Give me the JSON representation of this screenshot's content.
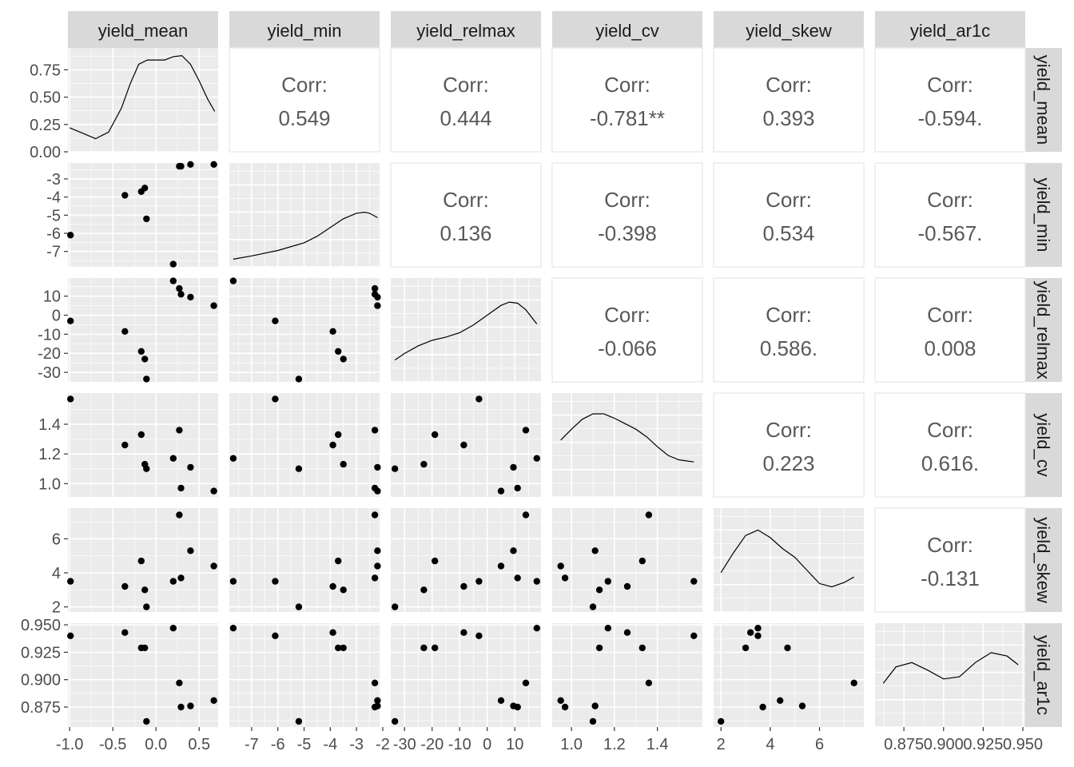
{
  "chart_data": {
    "type": "scatter-matrix",
    "title": "",
    "variables": [
      "yield_mean",
      "yield_min",
      "yield_relmax",
      "yield_cv",
      "yield_skew",
      "yield_ar1c"
    ],
    "axes": {
      "yield_mean": {
        "lim": [
          -1.02,
          0.72
        ],
        "ticks": [
          -1.0,
          -0.5,
          0.0,
          0.5
        ],
        "tick_labels": [
          "-1.0",
          "-0.5",
          "0.0",
          "0.5"
        ]
      },
      "yield_min": {
        "lim": [
          -7.85,
          -2.12
        ],
        "ticks": [
          -7,
          -6,
          -5,
          -4,
          -3,
          -2
        ],
        "tick_labels": [
          "-7",
          "-6",
          "-5",
          "-4",
          "-3",
          "-2"
        ]
      },
      "yield_relmax": {
        "lim": [
          -35.0,
          19.5
        ],
        "ticks": [
          -30,
          -20,
          -10,
          0,
          10
        ],
        "tick_labels": [
          "-30",
          "-20",
          "-10",
          "0",
          "10"
        ]
      },
      "yield_cv": {
        "lim": [
          0.91,
          1.61
        ],
        "ticks": [
          1.0,
          1.2,
          1.4
        ],
        "tick_labels": [
          "1.0",
          "1.2",
          "1.4"
        ]
      },
      "yield_skew": {
        "lim": [
          1.7,
          7.8
        ],
        "ticks": [
          2,
          4,
          6
        ],
        "tick_labels": [
          "2",
          "4",
          "6"
        ]
      },
      "yield_ar1c": {
        "lim": [
          0.8568,
          0.9515
        ],
        "ticks": [
          0.875,
          0.9,
          0.925,
          0.95
        ],
        "tick_labels": [
          "0.875",
          "0.900",
          "0.925",
          "0.950"
        ],
        "y_tick_labels": [
          "0.875",
          "0.900",
          "0.925",
          "0.950"
        ]
      }
    },
    "density_ylim": [
      0,
      0.95
    ],
    "density_yticks": [
      0,
      0.25,
      0.5,
      0.75
    ],
    "density_ytick_labels": [
      "0.00",
      "0.25",
      "0.50",
      "0.75"
    ],
    "points": {
      "yield_mean": [
        -0.99,
        -0.36,
        -0.17,
        -0.13,
        -0.11,
        0.2,
        0.27,
        0.29,
        0.4,
        0.67
      ],
      "yield_min": [
        -6.1,
        -3.9,
        -3.7,
        -3.5,
        -5.2,
        -7.7,
        -2.3,
        -2.3,
        -2.2,
        -2.2
      ],
      "yield_relmax": [
        -3,
        -8.5,
        -19,
        -23,
        -33.5,
        18,
        14,
        11,
        9.5,
        5
      ],
      "yield_cv": [
        1.57,
        1.26,
        1.33,
        1.13,
        1.1,
        1.17,
        1.36,
        0.97,
        1.11,
        0.95
      ],
      "yield_skew": [
        3.5,
        3.2,
        4.7,
        3.0,
        2.0,
        3.5,
        7.4,
        3.7,
        5.3,
        4.4
      ],
      "yield_ar1c": [
        0.94,
        0.943,
        0.929,
        0.929,
        0.862,
        0.947,
        0.897,
        0.875,
        0.876,
        0.881
      ]
    },
    "densities": {
      "yield_mean": {
        "x": [
          -1.0,
          -0.85,
          -0.7,
          -0.55,
          -0.4,
          -0.3,
          -0.2,
          -0.1,
          0.0,
          0.1,
          0.2,
          0.3,
          0.4,
          0.5,
          0.6,
          0.68
        ],
        "y": [
          0.22,
          0.17,
          0.12,
          0.18,
          0.4,
          0.62,
          0.8,
          0.84,
          0.84,
          0.84,
          0.87,
          0.88,
          0.8,
          0.65,
          0.48,
          0.37
        ]
      },
      "yield_min": {
        "x": [
          -7.7,
          -7,
          -6,
          -5,
          -4.5,
          -4,
          -3.5,
          -3,
          -2.7,
          -2.5,
          -2.2
        ],
        "y": [
          0.07,
          0.1,
          0.15,
          0.22,
          0.28,
          0.36,
          0.44,
          0.49,
          0.5,
          0.49,
          0.45
        ]
      },
      "yield_relmax": {
        "x": [
          -33.5,
          -30,
          -25,
          -20,
          -15,
          -10,
          -5,
          0,
          5,
          8,
          11,
          14,
          18
        ],
        "y": [
          0.2,
          0.26,
          0.33,
          0.38,
          0.41,
          0.45,
          0.52,
          0.61,
          0.7,
          0.73,
          0.72,
          0.66,
          0.53
        ]
      },
      "yield_cv": {
        "x": [
          0.95,
          1.0,
          1.05,
          1.1,
          1.15,
          1.2,
          1.25,
          1.3,
          1.35,
          1.4,
          1.45,
          1.5,
          1.57
        ],
        "y": [
          0.52,
          0.62,
          0.71,
          0.76,
          0.76,
          0.72,
          0.67,
          0.62,
          0.55,
          0.46,
          0.38,
          0.34,
          0.32
        ]
      },
      "yield_skew": {
        "x": [
          2.0,
          2.5,
          3.0,
          3.5,
          4.0,
          4.5,
          5.0,
          5.5,
          6.0,
          6.5,
          7.0,
          7.4
        ],
        "y": [
          0.36,
          0.54,
          0.7,
          0.75,
          0.68,
          0.58,
          0.5,
          0.38,
          0.26,
          0.23,
          0.27,
          0.32
        ]
      },
      "yield_ar1c": {
        "x": [
          0.862,
          0.87,
          0.88,
          0.89,
          0.9,
          0.91,
          0.92,
          0.93,
          0.94,
          0.947
        ],
        "y": [
          0.4,
          0.55,
          0.59,
          0.52,
          0.44,
          0.46,
          0.59,
          0.68,
          0.65,
          0.57
        ]
      }
    },
    "correlations": [
      {
        "row": 0,
        "col": 1,
        "label": "Corr:",
        "value": "0.549"
      },
      {
        "row": 0,
        "col": 2,
        "label": "Corr:",
        "value": "0.444"
      },
      {
        "row": 0,
        "col": 3,
        "label": "Corr:",
        "value": "-0.781**"
      },
      {
        "row": 0,
        "col": 4,
        "label": "Corr:",
        "value": "0.393"
      },
      {
        "row": 0,
        "col": 5,
        "label": "Corr:",
        "value": "-0.594."
      },
      {
        "row": 1,
        "col": 2,
        "label": "Corr:",
        "value": "0.136"
      },
      {
        "row": 1,
        "col": 3,
        "label": "Corr:",
        "value": "-0.398"
      },
      {
        "row": 1,
        "col": 4,
        "label": "Corr:",
        "value": "0.534"
      },
      {
        "row": 1,
        "col": 5,
        "label": "Corr:",
        "value": "-0.567."
      },
      {
        "row": 2,
        "col": 3,
        "label": "Corr:",
        "value": "-0.066"
      },
      {
        "row": 2,
        "col": 4,
        "label": "Corr:",
        "value": "0.586."
      },
      {
        "row": 2,
        "col": 5,
        "label": "Corr:",
        "value": "0.008"
      },
      {
        "row": 3,
        "col": 4,
        "label": "Corr:",
        "value": "0.223"
      },
      {
        "row": 3,
        "col": 5,
        "label": "Corr:",
        "value": "0.616."
      },
      {
        "row": 4,
        "col": 5,
        "label": "Corr:",
        "value": "-0.131"
      }
    ]
  }
}
